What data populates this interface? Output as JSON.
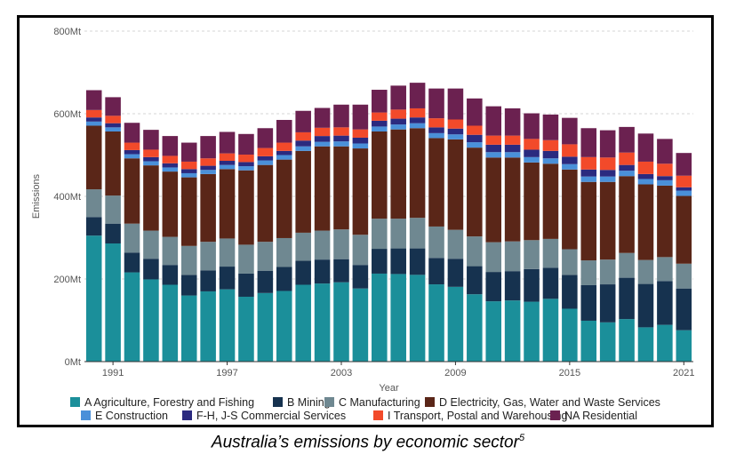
{
  "caption": {
    "text": "Australia’s emissions by economic sector",
    "superscript": "5"
  },
  "chart_data": {
    "type": "bar",
    "stacked": true,
    "xlabel": "Year",
    "ylabel": "Emissions",
    "ylim": [
      0,
      800
    ],
    "y_ticks": [
      0,
      200,
      400,
      600,
      800
    ],
    "y_tick_labels": [
      "0Mt",
      "200Mt",
      "400Mt",
      "600Mt",
      "800Mt"
    ],
    "x_tick_labels": [
      "1991",
      "1997",
      "2003",
      "2009",
      "2015",
      "2021"
    ],
    "grid": "horizontal dashed",
    "legend_position": "bottom",
    "categories": [
      "1990",
      "1991",
      "1992",
      "1993",
      "1994",
      "1995",
      "1996",
      "1997",
      "1998",
      "1999",
      "2000",
      "2001",
      "2002",
      "2003",
      "2004",
      "2005",
      "2006",
      "2007",
      "2008",
      "2009",
      "2010",
      "2011",
      "2012",
      "2013",
      "2014",
      "2015",
      "2016",
      "2017",
      "2018",
      "2019",
      "2020",
      "2021"
    ],
    "series": [
      {
        "name": "A Agriculture, Forestry and Fishing",
        "color": "#1b8f9a",
        "values": [
          305,
          286,
          216,
          199,
          186,
          160,
          170,
          175,
          157,
          166,
          171,
          186,
          189,
          192,
          177,
          213,
          212,
          210,
          187,
          181,
          163,
          146,
          148,
          145,
          152,
          128,
          99,
          95,
          103,
          83,
          89,
          76
        ]
      },
      {
        "name": "B Mining",
        "color": "#16324f",
        "values": [
          45,
          48,
          48,
          50,
          48,
          50,
          51,
          55,
          56,
          54,
          58,
          58,
          58,
          56,
          57,
          60,
          62,
          64,
          64,
          68,
          68,
          71,
          71,
          79,
          75,
          82,
          86,
          92,
          100,
          105,
          106,
          101
        ]
      },
      {
        "name": "C Manufacturing",
        "color": "#6f8891",
        "values": [
          67,
          68,
          70,
          68,
          68,
          70,
          69,
          68,
          70,
          70,
          70,
          68,
          70,
          72,
          73,
          73,
          72,
          74,
          76,
          70,
          72,
          72,
          72,
          70,
          70,
          62,
          60,
          60,
          60,
          58,
          58,
          60
        ]
      },
      {
        "name": "D Electricity, Gas, Water and Waste Services",
        "color": "#5a2618",
        "values": [
          154,
          155,
          158,
          158,
          158,
          166,
          164,
          168,
          180,
          186,
          190,
          198,
          204,
          201,
          209,
          211,
          216,
          217,
          214,
          219,
          215,
          205,
          203,
          188,
          182,
          193,
          190,
          188,
          186,
          183,
          173,
          164
        ]
      },
      {
        "name": "E Construction",
        "color": "#4a90d9",
        "values": [
          10,
          10,
          10,
          10,
          10,
          10,
          10,
          10,
          10,
          11,
          11,
          11,
          11,
          12,
          12,
          12,
          12,
          12,
          12,
          12,
          13,
          13,
          13,
          13,
          13,
          13,
          13,
          13,
          13,
          13,
          13,
          13
        ]
      },
      {
        "name": "F-H, J-S Commercial Services",
        "color": "#2b2a7f",
        "values": [
          10,
          10,
          10,
          10,
          10,
          10,
          10,
          10,
          10,
          10,
          10,
          14,
          14,
          14,
          14,
          14,
          14,
          14,
          14,
          14,
          18,
          18,
          18,
          18,
          18,
          18,
          17,
          16,
          14,
          12,
          10,
          8
        ]
      },
      {
        "name": "I Transport, Postal and Warehousing",
        "color": "#f24a2a",
        "values": [
          18,
          18,
          18,
          18,
          18,
          18,
          18,
          18,
          18,
          20,
          20,
          20,
          20,
          20,
          20,
          20,
          22,
          22,
          22,
          22,
          22,
          22,
          22,
          26,
          26,
          30,
          30,
          30,
          30,
          30,
          30,
          28
        ]
      },
      {
        "name": "NA Residential",
        "color": "#6b2150",
        "values": [
          48,
          45,
          48,
          48,
          48,
          46,
          54,
          52,
          50,
          48,
          55,
          52,
          48,
          55,
          60,
          55,
          58,
          62,
          72,
          75,
          66,
          71,
          66,
          62,
          62,
          64,
          70,
          66,
          62,
          68,
          60,
          55
        ]
      }
    ]
  }
}
